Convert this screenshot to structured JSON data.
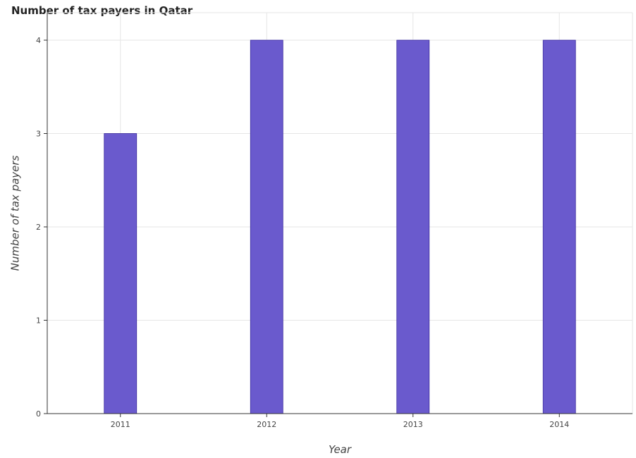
{
  "chart_data": {
    "type": "bar",
    "title": "Number of tax payers in Qatar",
    "xlabel": "Year",
    "ylabel": "Number of tax payers",
    "categories": [
      "2011",
      "2012",
      "2013",
      "2014"
    ],
    "values": [
      3,
      4,
      4,
      4
    ],
    "ylim": [
      0,
      4
    ],
    "yticks": [
      "0",
      "1",
      "2",
      "3",
      "4"
    ],
    "grid": true,
    "bar_color": "#6a5acd",
    "bar_edge_color": "#3a2a9d"
  }
}
